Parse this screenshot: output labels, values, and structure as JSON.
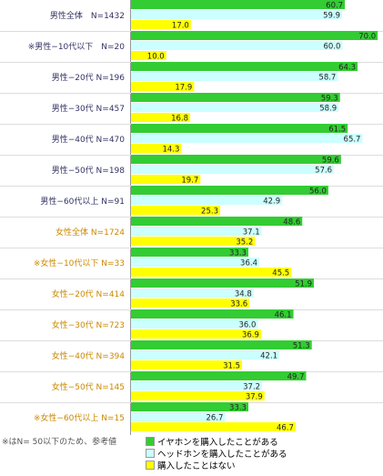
{
  "chart_data": {
    "type": "bar",
    "orientation": "horizontal",
    "categories": [
      "男性全体　N=1432",
      "※男性−10代以下　N=20",
      "男性−20代 N=196",
      "男性−30代 N=457",
      "男性−40代 N=470",
      "男性−50代 N=198",
      "男性−60代以上 N=91",
      "女性全体 N=1724",
      "※女性−10代以下 N=33",
      "女性−20代 N=414",
      "女性−30代 N=723",
      "女性−40代 N=394",
      "女性−50代 N=145",
      "※女性−60代以上 N=15"
    ],
    "category_colors": [
      "#333366",
      "#333366",
      "#333366",
      "#333366",
      "#333366",
      "#333366",
      "#333366",
      "#cc8800",
      "#cc8800",
      "#cc8800",
      "#cc8800",
      "#cc8800",
      "#cc8800",
      "#cc8800"
    ],
    "series": [
      {
        "name": "イヤホンを購入したことがある",
        "color": "#33cc33",
        "values": [
          60.7,
          70.0,
          64.3,
          59.3,
          61.5,
          59.6,
          56.0,
          48.6,
          33.3,
          51.9,
          46.1,
          51.3,
          49.7,
          33.3
        ]
      },
      {
        "name": "ヘッドホンを購入したことがある",
        "color": "#ccffff",
        "values": [
          59.9,
          60.0,
          58.7,
          58.9,
          65.7,
          57.6,
          42.9,
          37.1,
          36.4,
          34.8,
          36.0,
          42.1,
          37.2,
          26.7
        ]
      },
      {
        "name": "購入したことはない",
        "color": "#ffff00",
        "values": [
          17.0,
          10.0,
          17.9,
          16.8,
          14.3,
          19.7,
          25.3,
          35.2,
          45.5,
          33.6,
          36.9,
          31.5,
          37.9,
          46.7
        ]
      }
    ],
    "value_labels": [
      [
        "60.7",
        "70.0",
        "64.3",
        "59.3",
        "61.5",
        "59.6",
        "56.0",
        "48.6",
        "33.3",
        "51.9",
        "46.1",
        "51.3",
        "49.7",
        "33.3"
      ],
      [
        "59.9",
        "60.0",
        "58.7",
        "58.9",
        "65.7",
        "57.6",
        "42.9",
        "37.1",
        "36.4",
        "34.8",
        "36.0",
        "42.1",
        "37.2",
        "26.7"
      ],
      [
        "17.0",
        "10.0",
        "17.9",
        "16.8",
        "14.3",
        "19.7",
        "25.3",
        "35.2",
        "45.5",
        "33.6",
        "36.9",
        "31.5",
        "37.9",
        "46.7"
      ]
    ],
    "xlim": [
      0,
      71
    ],
    "grid": false,
    "legend_position": "bottom"
  },
  "footnote": "※はN= 50以下のため、参考値"
}
